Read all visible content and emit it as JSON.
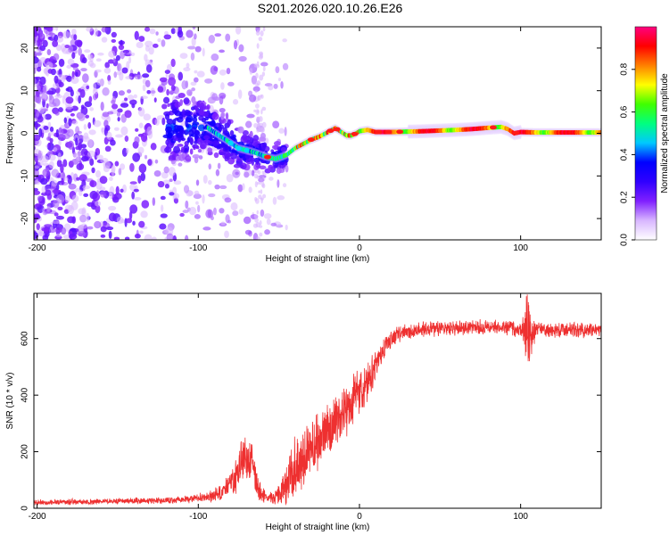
{
  "figure_title": "S201.2026.020.10.26.E26",
  "chart_data": [
    {
      "type": "heatmap",
      "panel": "spectrogram",
      "xlabel": "Height of straight line (km)",
      "ylabel": "Frequency (Hz)",
      "xlim": [
        -202,
        150
      ],
      "ylim": [
        -25,
        25
      ],
      "xticks": [
        -200,
        -100,
        0,
        100
      ],
      "yticks": [
        -20,
        -10,
        0,
        10,
        20
      ],
      "xtick_labels": [
        "-200",
        "-100",
        "0",
        "100"
      ],
      "ytick_labels": [
        "-20",
        "-10",
        "0",
        "10",
        "20"
      ],
      "colorbar": {
        "label": "Normalized spectral amplitude",
        "range": [
          0,
          1
        ],
        "ticks": [
          0.0,
          0.2,
          0.4,
          0.6,
          0.8
        ],
        "tick_labels": [
          "0.0",
          "0.2",
          "0.4",
          "0.6",
          "0.8"
        ],
        "colors": [
          "#ffffff",
          "#d8b6ff",
          "#8020ff",
          "#3000ff",
          "#0000ff",
          "#00c8ff",
          "#00ff80",
          "#40ff00",
          "#ffff00",
          "#ff8000",
          "#ff0000",
          "#ff0080"
        ]
      },
      "ridge": {
        "x": [
          -95,
          -85,
          -75,
          -65,
          -58,
          -52,
          -45,
          -40,
          -35,
          -30,
          -25,
          -20,
          -15,
          -12,
          -8,
          -5,
          -2,
          0,
          5,
          10,
          20,
          40,
          60,
          70,
          80,
          88,
          92,
          96,
          100,
          110,
          130,
          150
        ],
        "y": [
          1.5,
          -1.0,
          -3.5,
          -4.5,
          -5.5,
          -6.0,
          -5.0,
          -3.5,
          -2.5,
          -1.5,
          -0.8,
          0.2,
          1.2,
          0.5,
          -0.5,
          -0.5,
          0.0,
          0.5,
          0.8,
          0.3,
          0.3,
          0.5,
          0.8,
          1.0,
          1.3,
          1.5,
          1.0,
          0.0,
          0.3,
          0.2,
          0.2,
          0.2
        ]
      }
    },
    {
      "type": "line",
      "panel": "snr",
      "xlabel": "Height of straight line (km)",
      "ylabel": "SNR (10 * v/v)",
      "xlim": [
        -202,
        150
      ],
      "ylim": [
        0,
        760
      ],
      "xticks": [
        -200,
        -100,
        0,
        100
      ],
      "yticks": [
        0,
        200,
        400,
        600
      ],
      "xtick_labels": [
        "-200",
        "-100",
        "0",
        "100"
      ],
      "ytick_labels": [
        "0",
        "200",
        "400",
        "600"
      ],
      "series": [
        {
          "name": "SNR",
          "color": "#ee3030",
          "envelope": {
            "x": [
              -202,
              -150,
              -110,
              -95,
              -85,
              -78,
              -72,
              -67,
              -62,
              -57,
              -52,
              -47,
              -42,
              -37,
              -32,
              -27,
              -22,
              -17,
              -12,
              -7,
              -2,
              3,
              8,
              13,
              18,
              25,
              35,
              50,
              70,
              90,
              100,
              104,
              106,
              110,
              130,
              150
            ],
            "mean": [
              20,
              25,
              30,
              40,
              55,
              100,
              170,
              150,
              60,
              35,
              40,
              70,
              120,
              150,
              200,
              230,
              260,
              280,
              320,
              350,
              400,
              420,
              480,
              540,
              590,
              620,
              630,
              635,
              640,
              640,
              630,
              640,
              600,
              630,
              630,
              630
            ],
            "amp": [
              12,
              12,
              15,
              20,
              35,
              60,
              110,
              100,
              40,
              20,
              30,
              70,
              140,
              140,
              120,
              110,
              120,
              110,
              110,
              100,
              90,
              90,
              70,
              50,
              40,
              35,
              30,
              30,
              30,
              30,
              35,
              120,
              80,
              30,
              30,
              30
            ]
          }
        }
      ]
    }
  ]
}
